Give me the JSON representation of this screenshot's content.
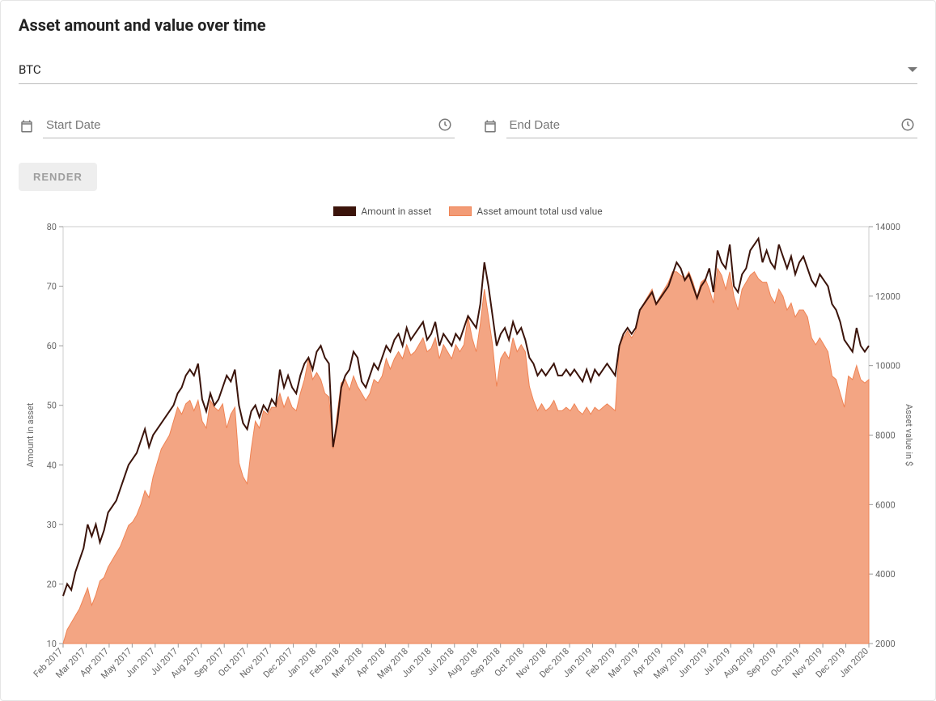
{
  "title": "Asset amount and value over time",
  "asset_selector": {
    "value": "BTC"
  },
  "start_date": {
    "placeholder": "Start Date",
    "value": ""
  },
  "end_date": {
    "placeholder": "End Date",
    "value": ""
  },
  "render_button": {
    "label": "RENDER"
  },
  "legend": {
    "amount": "Amount in asset",
    "usd": "Asset amount total usd value"
  },
  "chart": {
    "type": "line+area-dual-axis",
    "background_color": "#ffffff",
    "plot_border_color": "#cccccc",
    "grid_color": "#eeeeee",
    "line": {
      "color": "#3b140b",
      "width": 2.0
    },
    "area": {
      "fill": "#f29b76",
      "stroke": "#ef8354",
      "opacity": 0.9
    },
    "y_left": {
      "label": "Amount in asset",
      "min": 10,
      "max": 80,
      "step": 10,
      "label_fontsize": 11
    },
    "y_right": {
      "label": "Asset value in $",
      "min": 2000,
      "max": 14000,
      "step": 2000,
      "label_fontsize": 11
    },
    "x": {
      "labels": [
        "Feb 2017",
        "Mar 2017",
        "Apr 2017",
        "May 2017",
        "Jun 2017",
        "Jul 2017",
        "Aug 2017",
        "Sep 2017",
        "Oct 2017",
        "Nov 2017",
        "Dec 2017",
        "Jan 2018",
        "Feb 2018",
        "Mar 2018",
        "Apr 2018",
        "May 2018",
        "Jun 2018",
        "Jul 2018",
        "Aug 2018",
        "Sep 2018",
        "Oct 2018",
        "Nov 2018",
        "Dec 2018",
        "Jan 2019",
        "Feb 2019",
        "Mar 2019",
        "Apr 2019",
        "May 2019",
        "Jun 2019",
        "Jul 2019",
        "Aug 2019",
        "Sep 2019",
        "Oct 2019",
        "Nov 2019",
        "Dec 2019",
        "Jan 2020"
      ],
      "label_fontsize": 11,
      "label_rotation_deg": -45
    },
    "series_amount": [
      18,
      20,
      19,
      22,
      24,
      26,
      30,
      28,
      30,
      27,
      29,
      32,
      33,
      34,
      36,
      38,
      40,
      41,
      42,
      44,
      46,
      43,
      45,
      46,
      47,
      48,
      49,
      50,
      52,
      53,
      55,
      56,
      55,
      57,
      51,
      49,
      52,
      50,
      51,
      53,
      55,
      54,
      56,
      50,
      47,
      46,
      49,
      50,
      48,
      50,
      49,
      51,
      50,
      56,
      53,
      55,
      53,
      52,
      55,
      57,
      58,
      56,
      59,
      60,
      58,
      57,
      43,
      47,
      53,
      55,
      56,
      59,
      58,
      54,
      53,
      55,
      57,
      56,
      58,
      60,
      59,
      61,
      62,
      60,
      63,
      61,
      62,
      63,
      64,
      61,
      62,
      64,
      60,
      62,
      61,
      60,
      62,
      61,
      63,
      65,
      64,
      63,
      67,
      74,
      70,
      65,
      60,
      62,
      63,
      61,
      64,
      62,
      63,
      61,
      58,
      57,
      55,
      56,
      55,
      56,
      57,
      55,
      55,
      56,
      55,
      56,
      55,
      54,
      56,
      54,
      56,
      55,
      56,
      57,
      56,
      55,
      60,
      62,
      63,
      62,
      63,
      66,
      67,
      68,
      69,
      67,
      68,
      69,
      70,
      72,
      74,
      73,
      71,
      72,
      70,
      68,
      70,
      71,
      73,
      69,
      76,
      74,
      73,
      77,
      70,
      69,
      72,
      73,
      76,
      77,
      78,
      74,
      76,
      74,
      73,
      77,
      75,
      73,
      75,
      72,
      74,
      75,
      73,
      71,
      70,
      72,
      71,
      70,
      67,
      66,
      64,
      61,
      60,
      59,
      63,
      60,
      59,
      60
    ],
    "series_usd": [
      2000,
      2400,
      2600,
      2800,
      3000,
      3300,
      3600,
      3100,
      3400,
      3800,
      3900,
      4200,
      4400,
      4600,
      4800,
      5100,
      5400,
      5500,
      5700,
      6000,
      6400,
      6200,
      6800,
      7200,
      7600,
      7800,
      8000,
      8400,
      8800,
      8600,
      8900,
      9000,
      8700,
      9000,
      8400,
      8200,
      9000,
      8800,
      8700,
      8900,
      8200,
      8600,
      8800,
      7200,
      6800,
      6600,
      7600,
      8400,
      8200,
      8700,
      8600,
      8800,
      8800,
      9200,
      8800,
      9100,
      8800,
      8700,
      9200,
      9600,
      10200,
      9600,
      9800,
      9600,
      9200,
      9100,
      7600,
      8600,
      9500,
      9600,
      9300,
      9700,
      9400,
      9200,
      9000,
      9200,
      9600,
      9500,
      9700,
      10200,
      9900,
      10200,
      10400,
      10200,
      10600,
      10300,
      10400,
      10600,
      10800,
      10400,
      10500,
      10800,
      10200,
      10600,
      10400,
      10200,
      10600,
      10400,
      10600,
      11400,
      10800,
      10400,
      11200,
      12200,
      11400,
      10600,
      9400,
      10200,
      10400,
      10200,
      10800,
      10400,
      10600,
      10400,
      9400,
      9000,
      8700,
      8900,
      8700,
      8800,
      9000,
      8700,
      8700,
      8800,
      8700,
      8900,
      8700,
      8600,
      8800,
      8600,
      8800,
      8700,
      8800,
      8900,
      8800,
      8700,
      10600,
      10800,
      11000,
      10800,
      11000,
      11600,
      11800,
      12000,
      12200,
      11800,
      12000,
      12200,
      12400,
      12700,
      12700,
      12600,
      12500,
      12700,
      12400,
      12000,
      12400,
      12500,
      12200,
      11800,
      12800,
      12600,
      12200,
      12700,
      12000,
      11600,
      12200,
      12400,
      12600,
      12700,
      12500,
      12400,
      12400,
      12000,
      11800,
      12200,
      12000,
      11600,
      11800,
      11400,
      11600,
      11600,
      11400,
      10800,
      10600,
      10800,
      10600,
      10400,
      9700,
      9600,
      9200,
      8800,
      9700,
      9600,
      10000,
      9600,
      9500,
      9600
    ]
  }
}
